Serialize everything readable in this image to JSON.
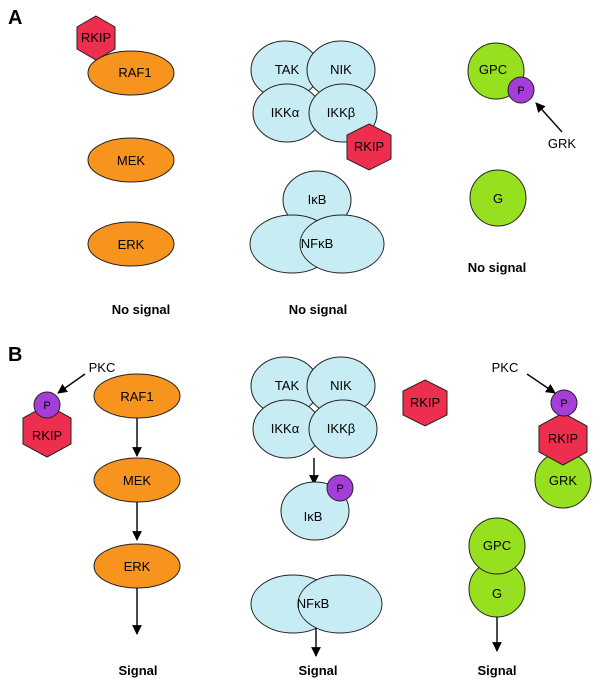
{
  "panels": {
    "a": "A",
    "b": "B"
  },
  "labels": {
    "rkip": "RKIP",
    "raf1": "RAF1",
    "mek": "MEK",
    "erk": "ERK",
    "tak": "TAK",
    "nik": "NIK",
    "ikka": "IKKα",
    "ikkb": "IKKβ",
    "ikb": "IκB",
    "nfkb": "NFκB",
    "gpc": "GPC",
    "g": "G",
    "grk": "GRK",
    "pkc": "PKC",
    "p": "P"
  },
  "captions": {
    "no_signal": "No signal",
    "signal": "Signal"
  },
  "colors": {
    "orange": "#f7941d",
    "cyan": "#c7ecf4",
    "green": "#96e01f",
    "red": "#ee2e4e",
    "purple": "#a53dd8"
  }
}
